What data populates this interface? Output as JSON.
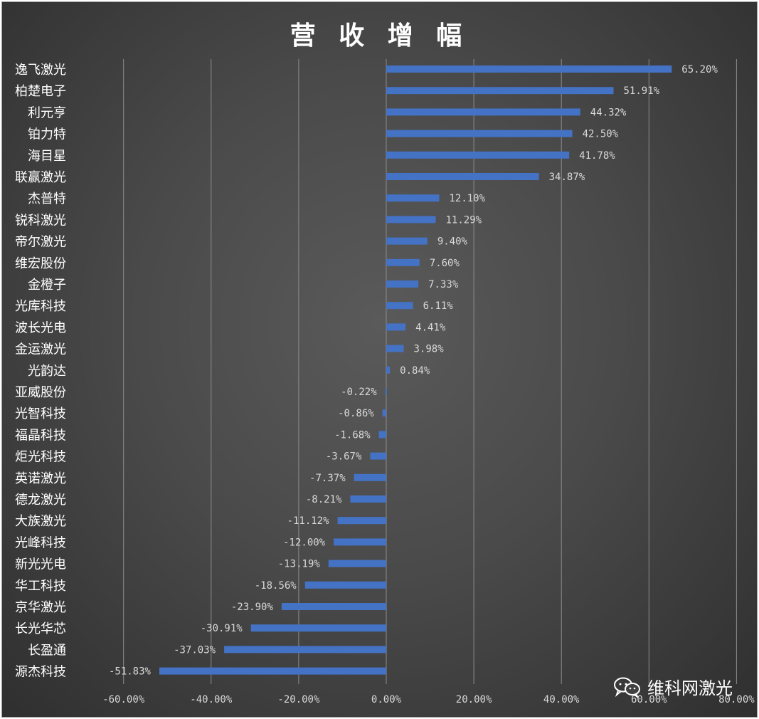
{
  "chart_data": {
    "type": "bar",
    "orientation": "horizontal",
    "title": "营 收 增 幅",
    "categories": [
      "逸飞激光",
      "柏楚电子",
      "利元亨",
      "铂力特",
      "海目星",
      "联赢激光",
      "杰普特",
      "锐科激光",
      "帝尔激光",
      "维宏股份",
      "金橙子",
      "光库科技",
      "波长光电",
      "金运激光",
      "光韵达",
      "亚威股份",
      "光智科技",
      "福晶科技",
      "炬光科技",
      "英诺激光",
      "德龙激光",
      "大族激光",
      "光峰科技",
      "新光光电",
      "华工科技",
      "京华激光",
      "长光华芯",
      "长盈通",
      "源杰科技"
    ],
    "values": [
      65.2,
      51.91,
      44.32,
      42.5,
      41.78,
      34.87,
      12.1,
      11.29,
      9.4,
      7.6,
      7.33,
      6.11,
      4.41,
      3.98,
      0.84,
      -0.22,
      -0.86,
      -1.68,
      -3.67,
      -7.37,
      -8.21,
      -11.12,
      -12.0,
      -13.19,
      -18.56,
      -23.9,
      -30.91,
      -37.03,
      -51.83
    ],
    "data_labels": [
      "65.20%",
      "51.91%",
      "44.32%",
      "42.50%",
      "41.78%",
      "34.87%",
      "12.10%",
      "11.29%",
      "9.40%",
      "7.60%",
      "7.33%",
      "6.11%",
      "4.41%",
      "3.98%",
      "0.84%",
      "-0.22%",
      "-0.86%",
      "-1.68%",
      "-3.67%",
      "-7.37%",
      "-8.21%",
      "-11.12%",
      "-12.00%",
      "-13.19%",
      "-18.56%",
      "-23.90%",
      "-30.91%",
      "-37.03%",
      "-51.83%"
    ],
    "xticks": [
      -60,
      -40,
      -20,
      0,
      20,
      40,
      60,
      80
    ],
    "xtick_labels": [
      "-60.00%",
      "-40.00%",
      "-20.00%",
      "0.00%",
      "20.00%",
      "40.00%",
      "60.00%",
      "80.00%"
    ],
    "xlim": [
      -60,
      80
    ],
    "xlabel": "",
    "ylabel": "",
    "grid": true,
    "bar_color": "#4472c4"
  },
  "watermark": {
    "text": "维科网激光",
    "icon": "wechat-icon"
  }
}
